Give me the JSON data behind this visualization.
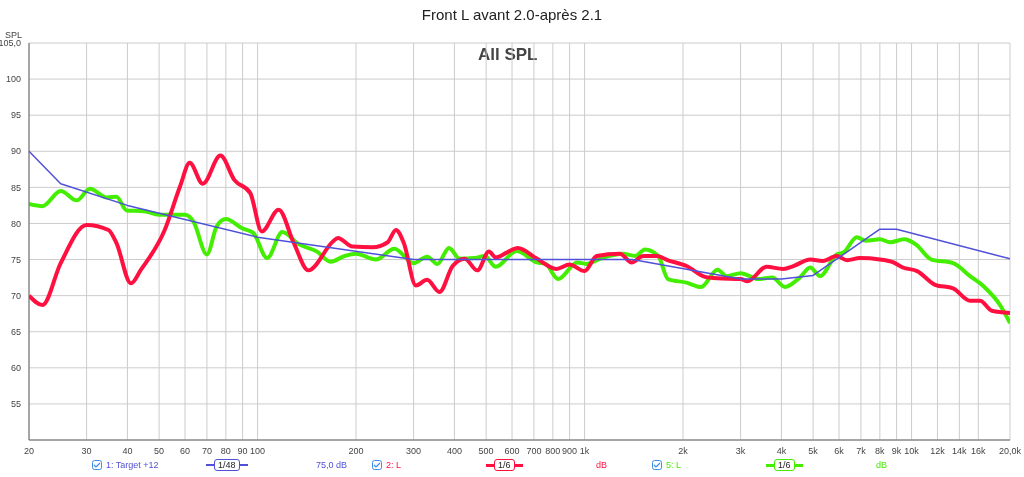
{
  "chart_data": {
    "type": "line",
    "title": "Front L avant 2.0-après 2.1",
    "subtitle": "All SPL",
    "ylabel": "SPL",
    "log": "x",
    "grid": true,
    "legend": "bottom",
    "marker": "none",
    "line_style": "solid",
    "xlim": [
      20,
      20000
    ],
    "ylim": [
      50,
      105
    ],
    "xticks": [
      20,
      30,
      40,
      50,
      60,
      70,
      80,
      90,
      100,
      200,
      300,
      400,
      500,
      600,
      700,
      800,
      900,
      {
        "value": 1000,
        "label": "1k"
      },
      {
        "value": 2000,
        "label": "2k"
      },
      {
        "value": 3000,
        "label": "3k"
      },
      {
        "value": 4000,
        "label": "4k"
      },
      {
        "value": 5000,
        "label": "5k"
      },
      {
        "value": 6000,
        "label": "6k"
      },
      {
        "value": 7000,
        "label": "7k"
      },
      {
        "value": 8000,
        "label": "8k"
      },
      {
        "value": 9000,
        "label": "9k"
      },
      {
        "value": 10000,
        "label": "10k"
      },
      {
        "value": 12000,
        "label": "12k"
      },
      {
        "value": 14000,
        "label": "14k"
      },
      {
        "value": 16000,
        "label": "16k"
      },
      {
        "value": 20000,
        "label": "20,0k"
      }
    ],
    "yticks": [
      55,
      60,
      65,
      70,
      75,
      80,
      85,
      90,
      95,
      100,
      {
        "value": 105,
        "label": "105,0"
      }
    ],
    "annotations": [
      "1/48",
      "75,0 dB",
      "1/6",
      "dB",
      "1/6",
      "dB"
    ],
    "series": [
      {
        "name": "1: Target +12",
        "color": "#5050d8",
        "x": [
          20,
          25,
          40,
          100,
          300,
          1400,
          3000,
          4000,
          5000,
          8000,
          9000,
          20000
        ],
        "values": [
          90,
          85.5,
          82.5,
          78.1,
          75,
          75,
          72.3,
          72.3,
          72.8,
          79.2,
          79.2,
          75.1
        ]
      },
      {
        "name": "2: L",
        "color": "#ff1040",
        "x": [
          20,
          22,
          25,
          30,
          35,
          37,
          41,
          44,
          52,
          58,
          62,
          68,
          77,
          85,
          95,
          103,
          116,
          129,
          143,
          170,
          176,
          195,
          225,
          250,
          265,
          280,
          305,
          330,
          360,
          395,
          430,
          470,
          510,
          535,
          580,
          625,
          710,
          820,
          900,
          1000,
          1089,
          1283,
          1393,
          1511,
          1661,
          1800,
          2050,
          2335,
          2550,
          3000,
          3150,
          3600,
          4050,
          4350,
          4900,
          5350,
          5900,
          6350,
          6950,
          8000,
          8800,
          9400,
          10400,
          11800,
          13400,
          15100,
          16200,
          17600,
          20000
        ],
        "values": [
          70,
          68.7,
          74.5,
          79.8,
          79.1,
          77.3,
          71.7,
          73.6,
          79.1,
          85.2,
          88.4,
          85.5,
          89.4,
          86,
          84.2,
          78.9,
          81.9,
          77.3,
          73.5,
          77.5,
          78,
          76.8,
          76.7,
          77.4,
          79.1,
          77.3,
          71.4,
          72.2,
          70.5,
          74.1,
          75.1,
          73.5,
          76.1,
          75.3,
          76,
          76.6,
          75.2,
          73.7,
          74.3,
          73.4,
          75.5,
          75.8,
          74.6,
          75.5,
          75.5,
          74.9,
          74.1,
          72.6,
          72.4,
          72.3,
          72,
          74,
          73.7,
          74.1,
          75,
          74.8,
          75.5,
          74.9,
          75.2,
          75,
          74.6,
          73.9,
          73.4,
          71.5,
          71,
          69.3,
          69.3,
          67.9,
          67.6
        ]
      },
      {
        "name": "5: L",
        "color": "#44ee00",
        "x": [
          20,
          22,
          25,
          28,
          30.7,
          34.6,
          37,
          39.8,
          45,
          50,
          60,
          63.6,
          70,
          75,
          80,
          90,
          97,
          107,
          119,
          134,
          152,
          167,
          185,
          200,
          230,
          262,
          300,
          330,
          355,
          385,
          415,
          460,
          495,
          535,
          620,
          715,
          760,
          830,
          950,
          1010,
          1130,
          1310,
          1430,
          1530,
          1680,
          1800,
          2050,
          2270,
          2550,
          2720,
          3000,
          3400,
          3750,
          4100,
          4550,
          4900,
          5250,
          5900,
          6200,
          6800,
          7250,
          8000,
          8600,
          9500,
          10300,
          11500,
          13400,
          15100,
          16600,
          18700,
          20000
        ],
        "values": [
          82.7,
          82.4,
          84.5,
          83.2,
          84.8,
          83.6,
          83.7,
          81.8,
          81.7,
          81.2,
          81.2,
          80.3,
          75.7,
          79.6,
          80.6,
          79.3,
          78.7,
          75.2,
          78.8,
          77.1,
          76.1,
          74.7,
          75.5,
          75.8,
          75,
          76.5,
          74.5,
          75.4,
          74.4,
          76.6,
          75.1,
          75.2,
          75.5,
          74,
          76.2,
          74.6,
          74.4,
          72.3,
          74.6,
          74.4,
          75.2,
          75.8,
          75.5,
          76.4,
          75.5,
          72.3,
          71.8,
          71.2,
          73.6,
          72.7,
          73.1,
          72.3,
          72.5,
          71.2,
          72.5,
          73.9,
          72.7,
          75.7,
          76,
          78.1,
          77.6,
          77.8,
          77.4,
          77.8,
          77.1,
          75,
          74.5,
          72.7,
          71.3,
          68.6,
          66.2
        ]
      }
    ]
  }
}
